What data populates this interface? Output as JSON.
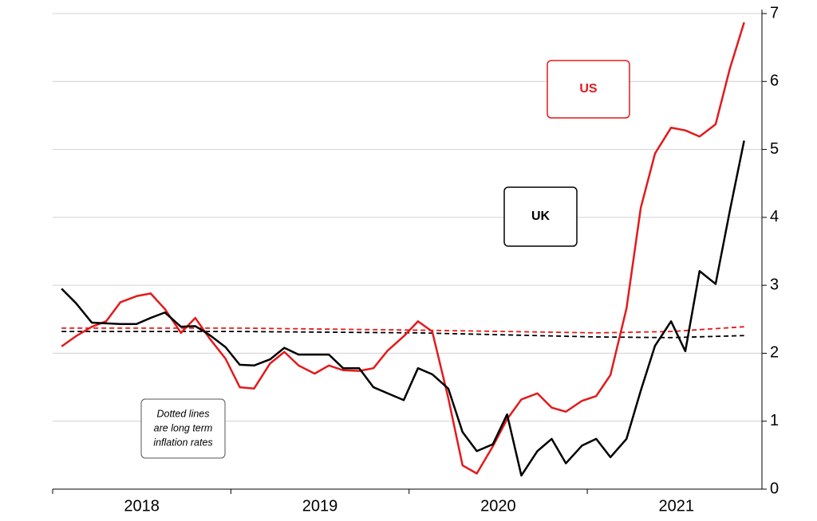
{
  "chart_data": {
    "type": "line",
    "x": [
      2018.05,
      2018.13,
      2018.22,
      2018.3,
      2018.38,
      2018.47,
      2018.55,
      2018.63,
      2018.72,
      2018.8,
      2018.88,
      2018.97,
      2019.05,
      2019.13,
      2019.22,
      2019.3,
      2019.38,
      2019.47,
      2019.55,
      2019.63,
      2019.72,
      2019.8,
      2019.88,
      2019.97,
      2020.05,
      2020.13,
      2020.22,
      2020.3,
      2020.38,
      2020.47,
      2020.55,
      2020.63,
      2020.72,
      2020.8,
      2020.88,
      2020.97,
      2021.05,
      2021.13,
      2021.22,
      2021.3,
      2021.38,
      2021.47,
      2021.55,
      2021.63,
      2021.72,
      2021.8,
      2021.88
    ],
    "series": [
      {
        "name": "US",
        "color": "#e31a1c",
        "values": [
          2.1,
          2.25,
          2.39,
          2.47,
          2.75,
          2.84,
          2.88,
          2.65,
          2.3,
          2.52,
          2.22,
          1.92,
          1.5,
          1.48,
          1.85,
          2.02,
          1.82,
          1.7,
          1.82,
          1.75,
          1.74,
          1.78,
          2.04,
          2.25,
          2.47,
          2.32,
          1.34,
          0.35,
          0.23,
          0.63,
          1.03,
          1.32,
          1.41,
          1.2,
          1.14,
          1.3,
          1.37,
          1.68,
          2.66,
          4.14,
          4.94,
          5.32,
          5.28,
          5.19,
          5.37,
          6.19,
          6.87
        ]
      },
      {
        "name": "UK",
        "color": "#000000",
        "values": [
          2.95,
          2.74,
          2.45,
          2.44,
          2.43,
          2.43,
          2.52,
          2.6,
          2.39,
          2.4,
          2.27,
          2.09,
          1.83,
          1.82,
          1.91,
          2.08,
          1.98,
          1.98,
          1.98,
          1.78,
          1.78,
          1.5,
          1.41,
          1.31,
          1.78,
          1.69,
          1.48,
          0.84,
          0.56,
          0.66,
          1.1,
          0.2,
          0.56,
          0.74,
          0.38,
          0.64,
          0.74,
          0.47,
          0.74,
          1.45,
          2.11,
          2.47,
          2.03,
          3.21,
          3.02,
          4.1,
          5.13
        ]
      }
    ],
    "reference_lines": [
      {
        "color": "#e31a1c",
        "x": [
          2018.05,
          2019.05,
          2020.05,
          2021.05,
          2021.47,
          2021.88
        ],
        "values": [
          2.37,
          2.37,
          2.34,
          2.3,
          2.32,
          2.39
        ]
      },
      {
        "color": "#000000",
        "x": [
          2018.05,
          2019.05,
          2020.05,
          2021.05,
          2021.47,
          2021.88
        ],
        "values": [
          2.32,
          2.32,
          2.3,
          2.24,
          2.23,
          2.26
        ]
      }
    ],
    "note": [
      "Dotted lines",
      "are long term",
      "inflation rates"
    ],
    "xlim": [
      2018,
      2021.98
    ],
    "xticks": [
      2018,
      2019,
      2020,
      2021
    ],
    "xlabels": [
      {
        "value": 2018.5,
        "label": "2018"
      },
      {
        "value": 2019.5,
        "label": "2019"
      },
      {
        "value": 2020.5,
        "label": "2020"
      },
      {
        "value": 2021.5,
        "label": "2021"
      }
    ],
    "ylim": [
      0,
      7
    ],
    "yticks": [
      0,
      1,
      2,
      3,
      4,
      5,
      6,
      7
    ],
    "grid": true
  }
}
